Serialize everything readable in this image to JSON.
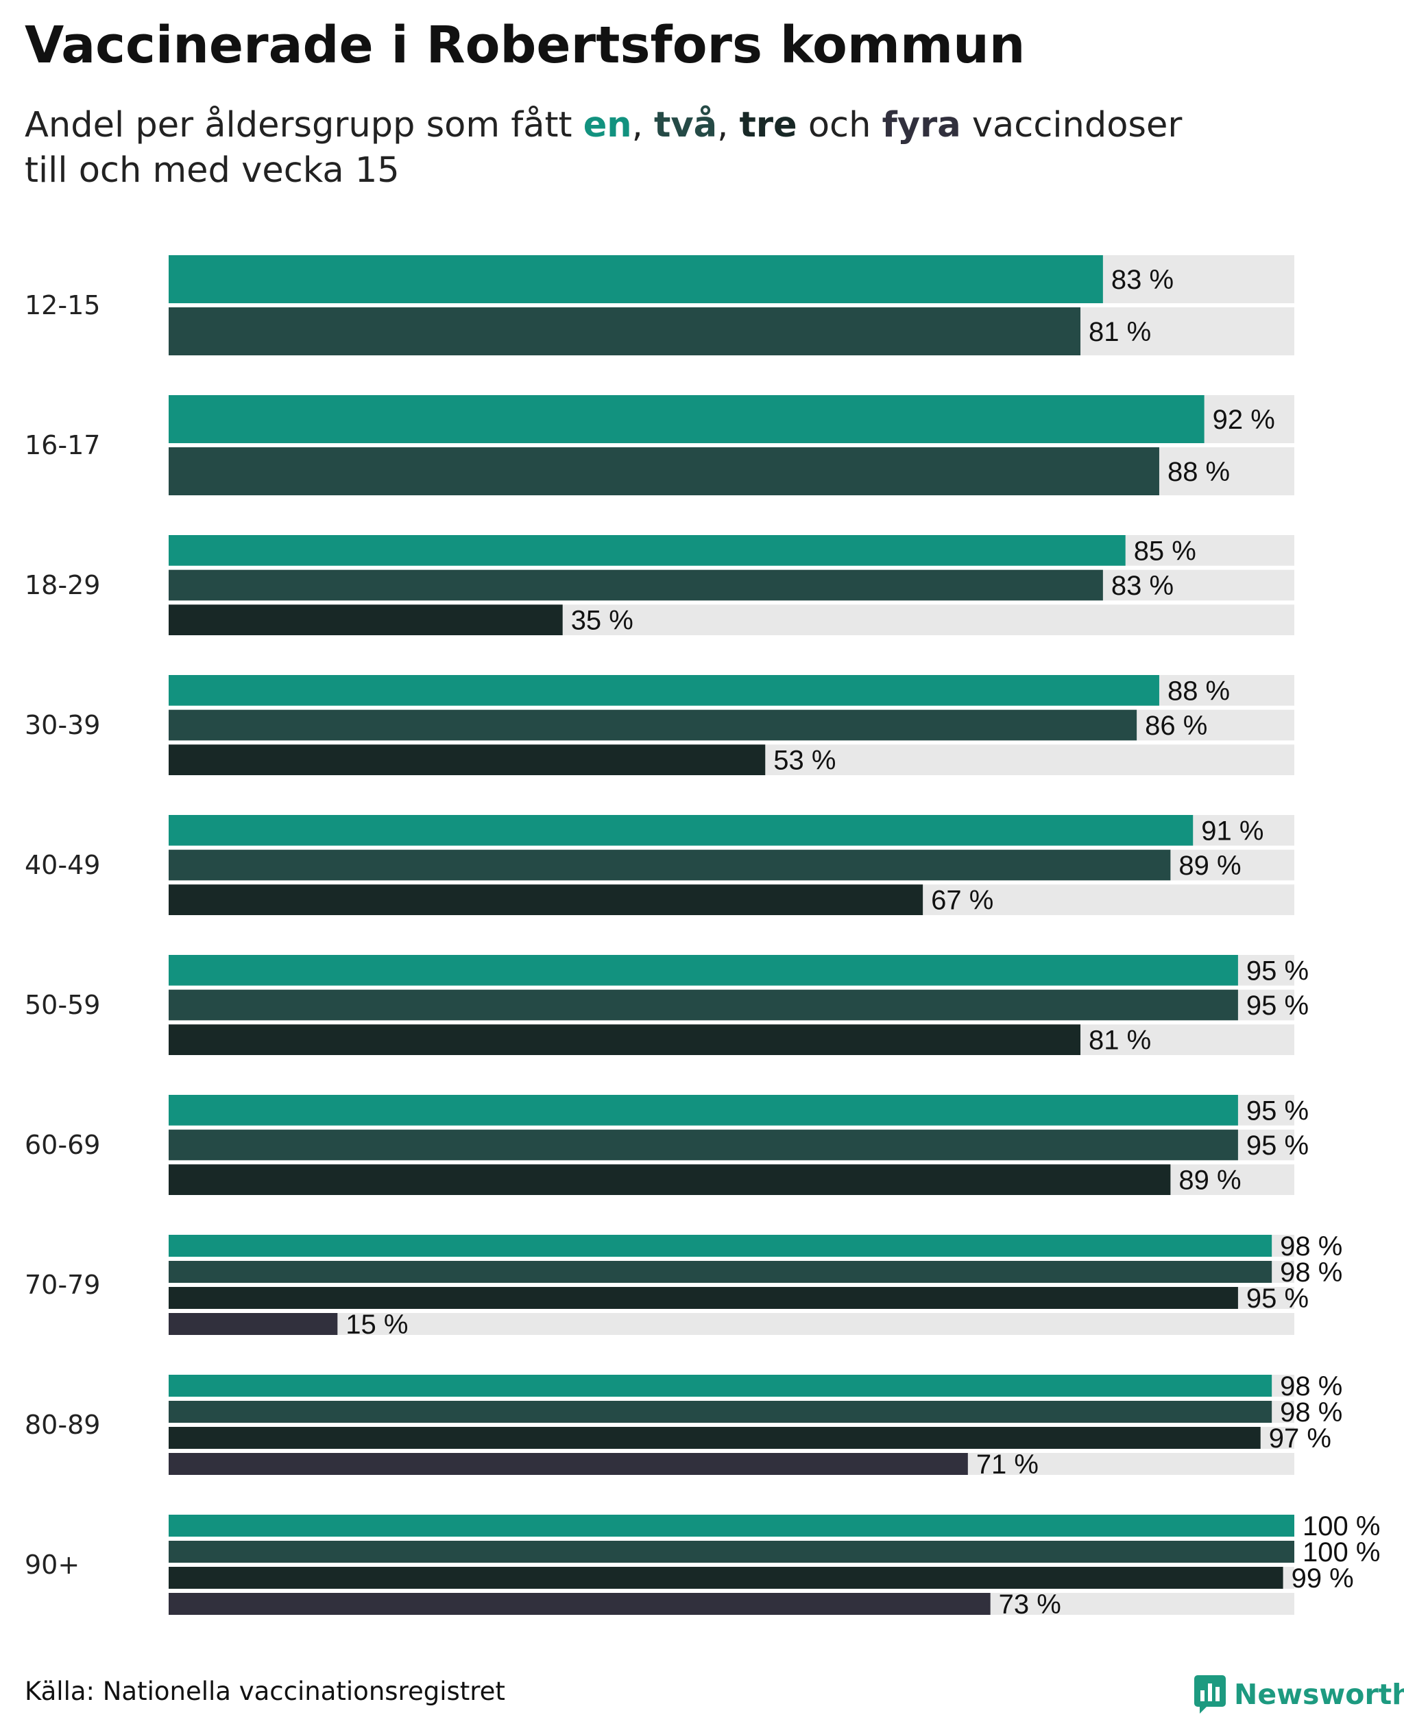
{
  "title": "Vaccinerade i Robertsfors kommun",
  "subtitle": {
    "prefix": "Andel per åldersgrupp som fått ",
    "k1": "en",
    "sep1": ", ",
    "k2": "två",
    "sep2": ", ",
    "k3": "tre",
    "sep3": " och ",
    "k4": "fyra",
    "suffix_line1": " vaccindoser",
    "line2": "till och med vecka 15"
  },
  "colors": {
    "dose1": "#12927f",
    "dose2": "#254a46",
    "dose3": "#182826",
    "dose4": "#31303d",
    "track": "#e8e8e8",
    "brand": "#1d9a80"
  },
  "chart_data": {
    "type": "bar",
    "orientation": "horizontal",
    "title": "Vaccinerade i Robertsfors kommun",
    "value_suffix": " %",
    "xlim": [
      0,
      100
    ],
    "grid": false,
    "legend": "inline in subtitle (en, två, tre, fyra)",
    "categories": [
      "12-15",
      "16-17",
      "18-29",
      "30-39",
      "40-49",
      "50-59",
      "60-69",
      "70-79",
      "80-89",
      "90+"
    ],
    "series": [
      {
        "name": "en",
        "values": [
          83,
          92,
          85,
          88,
          91,
          95,
          95,
          98,
          98,
          100
        ]
      },
      {
        "name": "två",
        "values": [
          81,
          88,
          83,
          86,
          89,
          95,
          95,
          98,
          98,
          100
        ]
      },
      {
        "name": "tre",
        "values": [
          null,
          null,
          35,
          53,
          67,
          81,
          89,
          95,
          97,
          99
        ]
      },
      {
        "name": "fyra",
        "values": [
          null,
          null,
          null,
          null,
          null,
          null,
          null,
          15,
          71,
          73
        ]
      }
    ]
  },
  "footer": {
    "source": "Källa: Nationella vaccinationsregistret",
    "brand": "Newsworthy",
    "brand_icon": "bar-chart-speech-bubble-icon"
  }
}
